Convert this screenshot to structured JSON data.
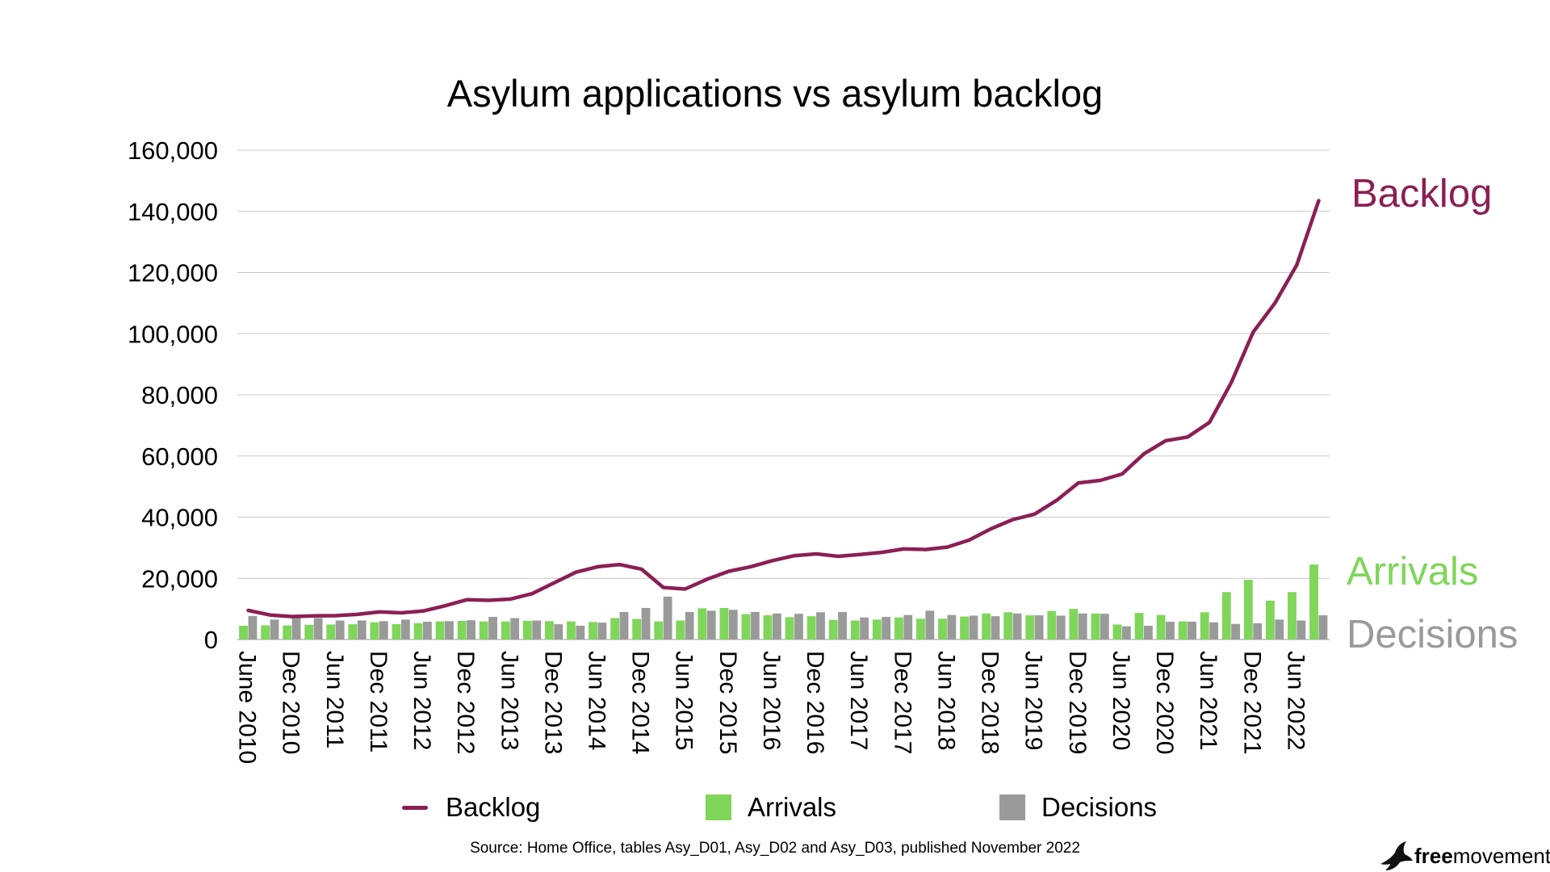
{
  "colors": {
    "backlog": "#8b1f55",
    "arrivals": "#7fd65a",
    "decisions": "#9a9a9a",
    "grid": "#c8c8c8"
  },
  "brand": {
    "bold": "free",
    "rest": "movement",
    "icon": "bird-icon"
  },
  "source_note": "Source: Home Office, tables Asy_D01, Asy_D02 and Asy_D03, published November 2022",
  "end_labels": {
    "backlog": "Backlog",
    "arrivals": "Arrivals",
    "decisions": "Decisions"
  },
  "chart_data": {
    "type": "bar",
    "title": "Asylum applications vs asylum backlog",
    "xlabel": "",
    "ylabel": "",
    "ylim": [
      0,
      160000
    ],
    "yticks": [
      0,
      20000,
      40000,
      60000,
      80000,
      100000,
      120000,
      140000,
      160000
    ],
    "ytick_labels": [
      "0",
      "20,000",
      "40,000",
      "60,000",
      "80,000",
      "100,000",
      "120,000",
      "140,000",
      "160,000"
    ],
    "grid": true,
    "legend_position": "bottom",
    "categories": [
      "June 2010",
      "Sep 2010",
      "Dec 2010",
      "Mar 2011",
      "Jun 2011",
      "Sep 2011",
      "Dec 2011",
      "Mar 2012",
      "Jun 2012",
      "Sep 2012",
      "Dec 2012",
      "Mar 2013",
      "Jun 2013",
      "Sep 2013",
      "Dec 2013",
      "Mar 2014",
      "Jun 2014",
      "Sep 2014",
      "Dec 2014",
      "Mar 2015",
      "Jun 2015",
      "Sep 2015",
      "Dec 2015",
      "Mar 2016",
      "Jun 2016",
      "Sep 2016",
      "Dec 2016",
      "Mar 2017",
      "Jun 2017",
      "Sep 2017",
      "Dec 2017",
      "Mar 2018",
      "Jun 2018",
      "Sep 2018",
      "Dec 2018",
      "Mar 2019",
      "Jun 2019",
      "Sep 2019",
      "Dec 2019",
      "Mar 2020",
      "Jun 2020",
      "Sep 2020",
      "Dec 2020",
      "Mar 2021",
      "Jun 2021",
      "Sep 2021",
      "Dec 2021",
      "Mar 2022",
      "Jun 2022",
      "Sep 2022"
    ],
    "tick_labels": [
      "June 2010",
      "",
      "Dec 2010",
      "",
      "Jun 2011",
      "",
      "Dec 2011",
      "",
      "Jun 2012",
      "",
      "Dec 2012",
      "",
      "Jun 2013",
      "",
      "Dec 2013",
      "",
      "Jun 2014",
      "",
      "Dec 2014",
      "",
      "Jun 2015",
      "",
      "Dec 2015",
      "",
      "Jun 2016",
      "",
      "Dec 2016",
      "",
      "Jun 2017",
      "",
      "Dec 2017",
      "",
      "Jun 2018",
      "",
      "Dec 2018",
      "",
      "Jun 2019",
      "",
      "Dec 2019",
      "",
      "Jun 2020",
      "",
      "Dec 2020",
      "",
      "Jun 2021",
      "",
      "Dec 2021",
      "",
      "Jun 2022",
      ""
    ],
    "series": [
      {
        "name": "Backlog",
        "kind": "line",
        "values": [
          9500,
          8000,
          7500,
          7700,
          7800,
          8200,
          9000,
          8700,
          9300,
          11000,
          13000,
          12800,
          13200,
          15000,
          18500,
          22000,
          23800,
          24500,
          23000,
          17000,
          16500,
          19700,
          22300,
          23800,
          25800,
          27400,
          28000,
          27200,
          27800,
          28500,
          29600,
          29400,
          30200,
          32500,
          36200,
          39200,
          41000,
          45500,
          51200,
          52000,
          54100,
          60700,
          65000,
          66200,
          71000,
          84000,
          100500,
          110000,
          122500,
          143500
        ]
      },
      {
        "name": "Arrivals",
        "kind": "bar",
        "values": [
          4500,
          4600,
          4600,
          4800,
          4900,
          5000,
          5600,
          5000,
          5300,
          5900,
          6100,
          5900,
          5900,
          6100,
          6000,
          5900,
          5700,
          7000,
          6700,
          5900,
          6200,
          10200,
          10300,
          8300,
          7900,
          7300,
          7600,
          6400,
          6200,
          6500,
          7200,
          6800,
          6800,
          7500,
          8500,
          8900,
          7900,
          9300,
          10000,
          8500,
          4900,
          8700,
          8000,
          5900,
          8900,
          15500,
          19500,
          12700,
          15500,
          24500
        ]
      },
      {
        "name": "Decisions",
        "kind": "bar",
        "values": [
          7700,
          6500,
          7100,
          7000,
          6200,
          6200,
          6000,
          6500,
          5800,
          6000,
          6300,
          7400,
          7000,
          6200,
          5000,
          4500,
          5500,
          9000,
          10300,
          14000,
          9000,
          9400,
          9700,
          9000,
          8500,
          8400,
          8900,
          9000,
          7200,
          7400,
          8000,
          9400,
          8000,
          7800,
          7600,
          8500,
          7900,
          7800,
          8500,
          8400,
          4300,
          4500,
          5800,
          5800,
          5600,
          5100,
          5300,
          6500,
          6200,
          7900
        ]
      }
    ]
  }
}
